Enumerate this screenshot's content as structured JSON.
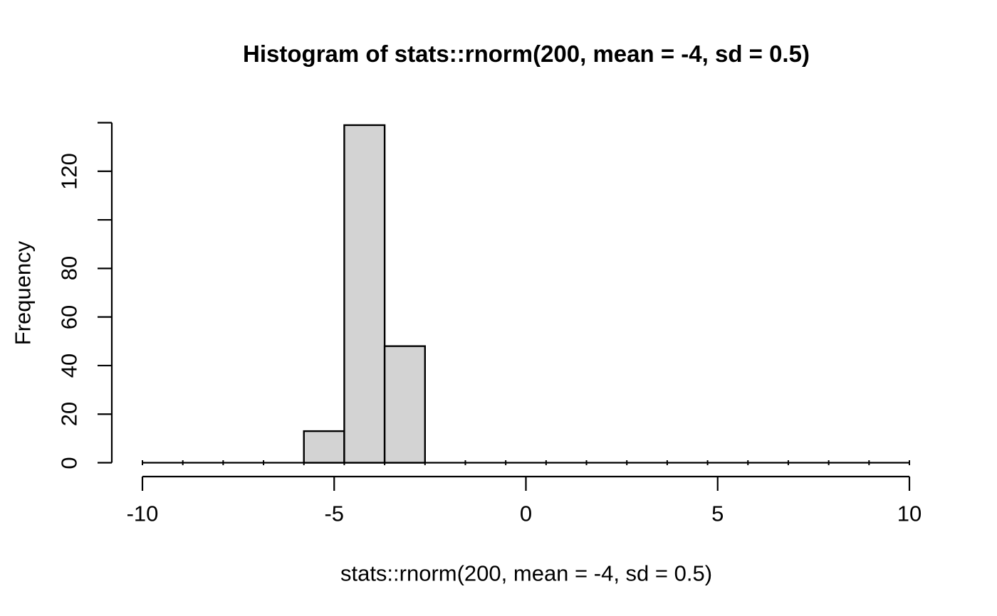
{
  "chart_data": {
    "type": "histogram",
    "title": "Histogram of stats::rnorm(200, mean = -4, sd = 0.5)",
    "xlabel": "stats::rnorm(200, mean = -4, sd = 0.5)",
    "ylabel": "Frequency",
    "xlim": [
      -10,
      10
    ],
    "ylim": [
      0,
      140
    ],
    "x_ticks": [
      -10,
      -5,
      0,
      5,
      10
    ],
    "x_tick_labels": [
      "-10",
      "-5",
      "0",
      "5",
      "10"
    ],
    "y_ticks": [
      0,
      20,
      40,
      60,
      80,
      100,
      120,
      140
    ],
    "y_tick_labels": [
      "0",
      "20",
      "40",
      "60",
      "80",
      "",
      "120",
      ""
    ],
    "bins": {
      "start": -10,
      "end": 10,
      "n": 19
    },
    "counts": [
      0,
      0,
      0,
      0,
      13,
      139,
      48,
      0,
      0,
      0,
      0,
      0,
      0,
      0,
      0,
      0,
      0,
      0,
      0
    ],
    "total_n": 200,
    "colors": {
      "bar_fill": "#d3d3d3",
      "bar_stroke": "#000000",
      "axis": "#000000",
      "text": "#000000",
      "background": "#ffffff"
    }
  }
}
